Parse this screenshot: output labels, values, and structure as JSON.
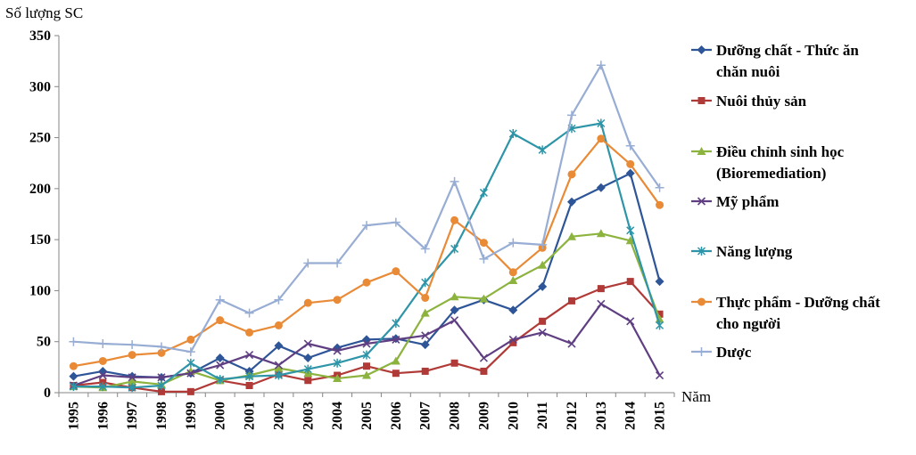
{
  "chart_data": {
    "type": "line",
    "title": "",
    "ylabel": "Số lượng SC",
    "xlabel": "Năm",
    "ylim": [
      0,
      350
    ],
    "yticks": [
      0,
      50,
      100,
      150,
      200,
      250,
      300,
      350
    ],
    "grid": false,
    "legend_position": "right",
    "categories": [
      "1995",
      "1996",
      "1997",
      "1998",
      "1999",
      "2000",
      "2001",
      "2002",
      "2003",
      "2004",
      "2005",
      "2006",
      "2007",
      "2008",
      "2009",
      "2010",
      "2011",
      "2012",
      "2013",
      "2014",
      "2015"
    ],
    "series": [
      {
        "name_lines": [
          "Dưỡng chất - Thức ăn",
          "chăn nuôi"
        ],
        "color": "#2e5597",
        "marker": "diamond",
        "values": [
          16,
          21,
          16,
          15,
          19,
          34,
          21,
          46,
          34,
          44,
          52,
          53,
          47,
          81,
          91,
          81,
          104,
          187,
          201,
          215,
          109
        ]
      },
      {
        "name_lines": [
          "Nuôi thủy sản"
        ],
        "color": "#b03a37",
        "marker": "square",
        "values": [
          7,
          10,
          5,
          1,
          1,
          12,
          7,
          18,
          12,
          17,
          26,
          19,
          21,
          29,
          21,
          49,
          70,
          90,
          102,
          109,
          77
        ]
      },
      {
        "name_lines": [
          "Điều chỉnh sinh học",
          "(Bioremediation)"
        ],
        "color": "#8db33f",
        "marker": "triangle",
        "values": [
          6,
          5,
          11,
          8,
          21,
          12,
          17,
          24,
          19,
          14,
          17,
          31,
          78,
          94,
          92,
          110,
          125,
          153,
          156,
          149,
          72
        ]
      },
      {
        "name_lines": [
          "Mỹ phẩm"
        ],
        "color": "#5f3f82",
        "marker": "x",
        "values": [
          7,
          17,
          15,
          15,
          19,
          27,
          37,
          27,
          48,
          41,
          48,
          52,
          56,
          71,
          34,
          52,
          59,
          48,
          87,
          70,
          17
        ]
      },
      {
        "name_lines": [
          "Năng lượng"
        ],
        "color": "#2e95a8",
        "marker": "asterisk",
        "values": [
          6,
          6,
          5,
          7,
          29,
          13,
          16,
          17,
          23,
          29,
          37,
          68,
          108,
          141,
          196,
          254,
          238,
          259,
          264,
          159,
          66
        ]
      },
      {
        "name_lines": [
          "Thực phẩm - Dưỡng chất",
          "cho người"
        ],
        "color": "#e98a37",
        "marker": "circle",
        "values": [
          26,
          31,
          37,
          39,
          52,
          71,
          59,
          66,
          88,
          91,
          108,
          119,
          93,
          169,
          147,
          118,
          142,
          214,
          249,
          224,
          184
        ]
      },
      {
        "name_lines": [
          "Dược"
        ],
        "color": "#98add4",
        "marker": "plus",
        "values": [
          50,
          48,
          47,
          45,
          40,
          91,
          78,
          91,
          127,
          127,
          164,
          167,
          141,
          207,
          131,
          147,
          145,
          272,
          321,
          242,
          201
        ]
      }
    ]
  }
}
